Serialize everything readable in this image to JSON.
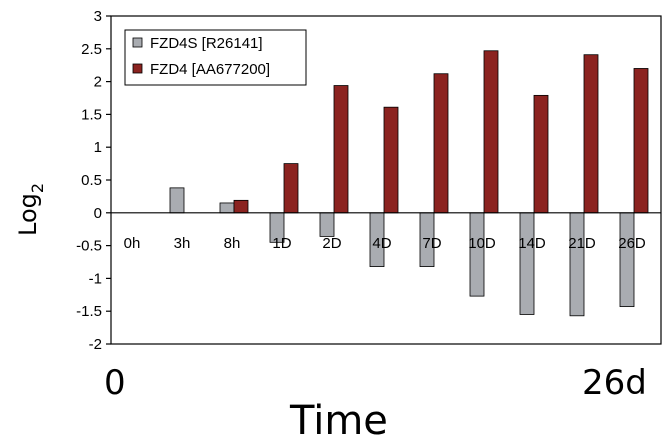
{
  "chart_data": {
    "type": "bar",
    "categories": [
      "0h",
      "3h",
      "8h",
      "1D",
      "2D",
      "4D",
      "7D",
      "10D",
      "14D",
      "21D",
      "26D"
    ],
    "series": [
      {
        "name": "FZD4S [R26141]",
        "color": "#a9acb1",
        "values": [
          0,
          0.38,
          0.15,
          -0.45,
          -0.36,
          -0.82,
          -0.82,
          -1.27,
          -1.55,
          -1.57,
          -1.43
        ]
      },
      {
        "name": "FZD4 [AA677200]",
        "color": "#8b2320",
        "values": [
          0,
          0,
          0.19,
          0.75,
          1.94,
          1.61,
          2.12,
          2.47,
          1.79,
          2.41,
          2.2
        ]
      }
    ],
    "ylim": [
      -2,
      3
    ],
    "yticks": [
      "-2",
      "-1.5",
      "-1",
      "-0.5",
      "0",
      "0.5",
      "1",
      "1.5",
      "2",
      "2.5",
      "3"
    ],
    "ylabel_main": "Log",
    "ylabel_sub": "2",
    "xlabel": "Time",
    "x_start_label": "0",
    "x_end_label": "26d",
    "legend_position": "top-left",
    "grid": false
  }
}
